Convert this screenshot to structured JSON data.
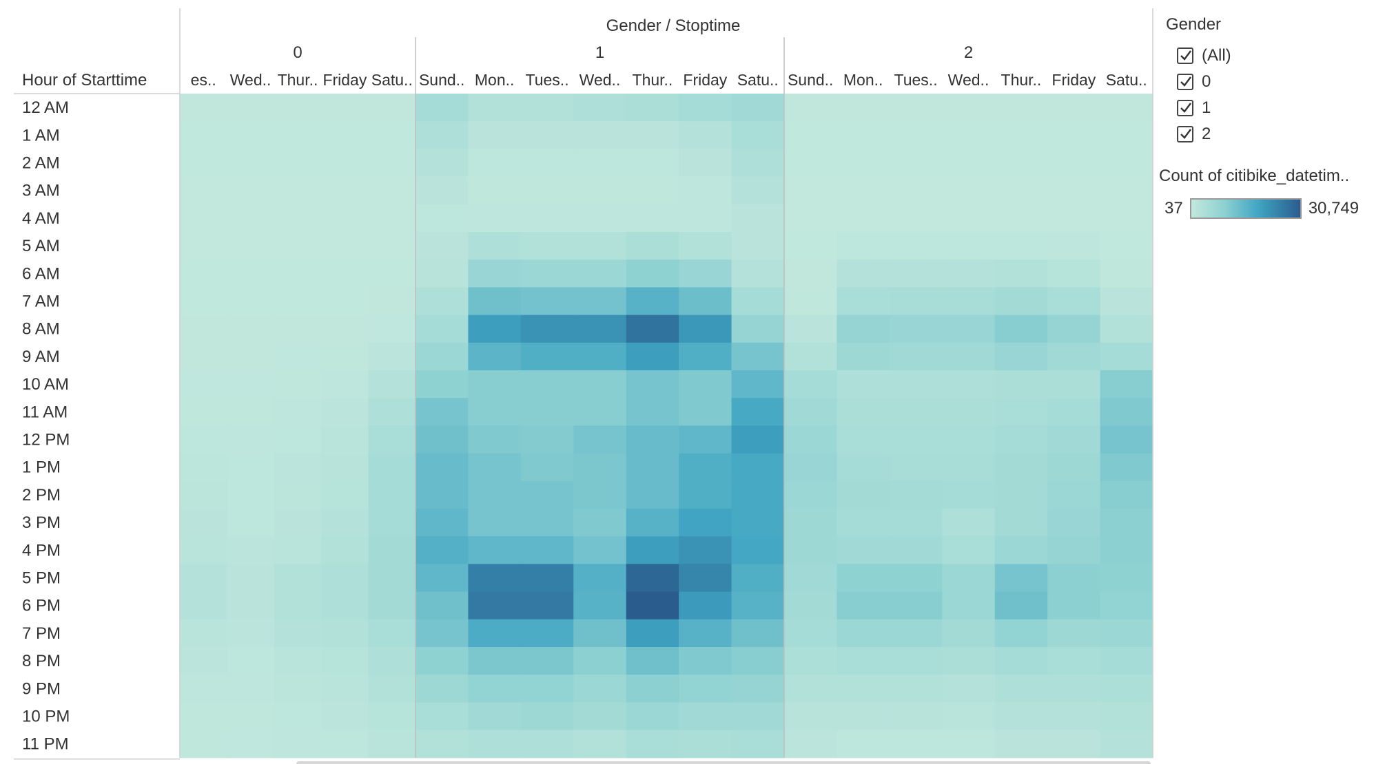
{
  "chart_data": {
    "type": "heatmap",
    "title": "Gender / Stoptime",
    "row_header": "Hour of Starttime",
    "rows": [
      "12 AM",
      "1 AM",
      "2 AM",
      "3 AM",
      "4 AM",
      "5 AM",
      "6 AM",
      "7 AM",
      "8 AM",
      "9 AM",
      "10 AM",
      "11 AM",
      "12 PM",
      "1 PM",
      "2 PM",
      "3 PM",
      "4 PM",
      "5 PM",
      "6 PM",
      "7 PM",
      "8 PM",
      "9 PM",
      "10 PM",
      "11 PM"
    ],
    "groups": [
      {
        "name": "0",
        "columns": [
          "es..",
          "Wed..",
          "Thur..",
          "Friday",
          "Satu.."
        ]
      },
      {
        "name": "1",
        "columns": [
          "Sund..",
          "Mon..",
          "Tues..",
          "Wed..",
          "Thur..",
          "Friday",
          "Satu.."
        ]
      },
      {
        "name": "2",
        "columns": [
          "Sund..",
          "Mon..",
          "Tues..",
          "Wed..",
          "Thur..",
          "Friday",
          "Satu.."
        ]
      }
    ],
    "value_min": 37,
    "value_max": 30749,
    "values": [
      [
        [
          300,
          300,
          300,
          300,
          300
        ],
        [
          5000,
          3000,
          3000,
          3500,
          4000,
          5000,
          6000
        ],
        [
          300,
          300,
          300,
          300,
          300,
          300,
          300
        ]
      ],
      [
        [
          200,
          200,
          200,
          200,
          200
        ],
        [
          3500,
          1500,
          1500,
          1500,
          1500,
          2500,
          4500
        ],
        [
          200,
          200,
          200,
          200,
          200,
          200,
          200
        ]
      ],
      [
        [
          150,
          150,
          150,
          150,
          150
        ],
        [
          2500,
          1000,
          1000,
          1000,
          1000,
          1500,
          3500
        ],
        [
          150,
          150,
          150,
          150,
          150,
          150,
          150
        ]
      ],
      [
        [
          100,
          100,
          100,
          100,
          100
        ],
        [
          1500,
          600,
          600,
          600,
          600,
          800,
          2500
        ],
        [
          100,
          100,
          100,
          100,
          100,
          100,
          100
        ]
      ],
      [
        [
          100,
          100,
          100,
          100,
          100
        ],
        [
          1000,
          800,
          800,
          800,
          800,
          800,
          1500
        ],
        [
          100,
          100,
          100,
          100,
          100,
          100,
          100
        ]
      ],
      [
        [
          100,
          100,
          100,
          100,
          100
        ],
        [
          1500,
          3500,
          3000,
          3000,
          4000,
          3000,
          1500
        ],
        [
          200,
          1000,
          1000,
          1000,
          1000,
          800,
          200
        ]
      ],
      [
        [
          150,
          150,
          150,
          150,
          150
        ],
        [
          2000,
          7500,
          7000,
          7000,
          9000,
          7500,
          2500
        ],
        [
          300,
          2500,
          2500,
          2500,
          2800,
          2200,
          500
        ]
      ],
      [
        [
          200,
          200,
          200,
          200,
          250
        ],
        [
          3500,
          13000,
          12500,
          12500,
          16000,
          13500,
          5000
        ],
        [
          600,
          4500,
          4800,
          4800,
          5500,
          4500,
          1500
        ]
      ],
      [
        [
          250,
          250,
          250,
          300,
          400
        ],
        [
          5000,
          20000,
          22000,
          22000,
          27000,
          21000,
          8000
        ],
        [
          1500,
          8000,
          7500,
          7500,
          10000,
          8000,
          3000
        ]
      ],
      [
        [
          300,
          300,
          350,
          500,
          1200
        ],
        [
          7000,
          15500,
          17000,
          17000,
          20000,
          17000,
          12000
        ],
        [
          3000,
          6500,
          6000,
          6000,
          7500,
          6000,
          5000
        ]
      ],
      [
        [
          400,
          400,
          500,
          800,
          2500
        ],
        [
          9000,
          10000,
          10000,
          10000,
          12000,
          11000,
          15000
        ],
        [
          5000,
          3500,
          3500,
          3500,
          4000,
          4000,
          10000
        ]
      ],
      [
        [
          600,
          500,
          700,
          1200,
          3500
        ],
        [
          12000,
          10000,
          10000,
          10000,
          12000,
          11000,
          18000
        ],
        [
          6000,
          4000,
          4000,
          4000,
          4500,
          5000,
          11000
        ]
      ],
      [
        [
          900,
          700,
          1000,
          1700,
          4500
        ],
        [
          13000,
          11000,
          10500,
          12000,
          14000,
          15000,
          20000
        ],
        [
          7000,
          4500,
          4500,
          4500,
          5000,
          6000,
          12000
        ]
      ],
      [
        [
          1100,
          900,
          1200,
          2000,
          5000
        ],
        [
          14000,
          12000,
          11000,
          11500,
          14000,
          17000,
          18000
        ],
        [
          7500,
          5000,
          4800,
          4800,
          5500,
          6500,
          11000
        ]
      ],
      [
        [
          1300,
          1000,
          1300,
          2200,
          5000
        ],
        [
          14000,
          12000,
          12000,
          11500,
          14000,
          17000,
          18000
        ],
        [
          7000,
          5500,
          5200,
          5000,
          5500,
          7000,
          10000
        ]
      ],
      [
        [
          1500,
          1000,
          1500,
          2500,
          5000
        ],
        [
          15000,
          12000,
          12000,
          11000,
          16000,
          19000,
          18000
        ],
        [
          6500,
          5000,
          5000,
          3500,
          5500,
          7500,
          9500
        ]
      ],
      [
        [
          1800,
          1200,
          1800,
          3000,
          5500
        ],
        [
          16500,
          15000,
          15000,
          12500,
          20000,
          22000,
          18500
        ],
        [
          6500,
          6000,
          6000,
          4500,
          7000,
          8000,
          9500
        ]
      ],
      [
        [
          2500,
          1500,
          3000,
          3500,
          5500
        ],
        [
          15000,
          25000,
          25000,
          16500,
          29000,
          24000,
          17000
        ],
        [
          6000,
          9000,
          9000,
          7000,
          12000,
          9500,
          9000
        ]
      ],
      [
        [
          2500,
          1500,
          3000,
          3500,
          5500
        ],
        [
          13000,
          26000,
          26000,
          16000,
          30749,
          20500,
          16000
        ],
        [
          5500,
          10000,
          10000,
          7000,
          13000,
          9500,
          8500
        ]
      ],
      [
        [
          1800,
          1200,
          2500,
          3000,
          4500
        ],
        [
          12000,
          17500,
          17500,
          13000,
          20000,
          16000,
          13000
        ],
        [
          5000,
          7000,
          7000,
          5500,
          8500,
          6500,
          7000
        ]
      ],
      [
        [
          1200,
          900,
          1800,
          2200,
          3500
        ],
        [
          9000,
          11500,
          11500,
          9500,
          13000,
          11000,
          10000
        ],
        [
          3800,
          4500,
          4500,
          4000,
          5000,
          4500,
          5000
        ]
      ],
      [
        [
          800,
          700,
          1300,
          1600,
          2800
        ],
        [
          6500,
          8500,
          8500,
          7000,
          9500,
          8500,
          8000
        ],
        [
          3000,
          3000,
          3000,
          2500,
          3500,
          3500,
          3800
        ]
      ],
      [
        [
          600,
          500,
          900,
          1200,
          2200
        ],
        [
          4500,
          6000,
          6500,
          5500,
          7000,
          6000,
          6000
        ],
        [
          2000,
          2000,
          2000,
          1800,
          2500,
          2500,
          3000
        ]
      ],
      [
        [
          500,
          400,
          700,
          900,
          1800
        ],
        [
          3000,
          3500,
          3500,
          3000,
          4500,
          4000,
          4500
        ],
        [
          1200,
          1000,
          1000,
          1000,
          1500,
          1500,
          2500
        ]
      ]
    ]
  },
  "legend": {
    "filter_title": "Gender",
    "filter_items": [
      {
        "label": "(All)",
        "checked": true
      },
      {
        "label": "0",
        "checked": true
      },
      {
        "label": "1",
        "checked": true
      },
      {
        "label": "2",
        "checked": true
      }
    ],
    "color_title": "Count of citibike_datetim..",
    "color_min_label": "37",
    "color_max_label": "30,749"
  },
  "colors": {
    "low": "#c2e8dd",
    "mid_low": "#8ed1d2",
    "mid_high": "#3fa4c2",
    "high": "#2a5c8e"
  }
}
